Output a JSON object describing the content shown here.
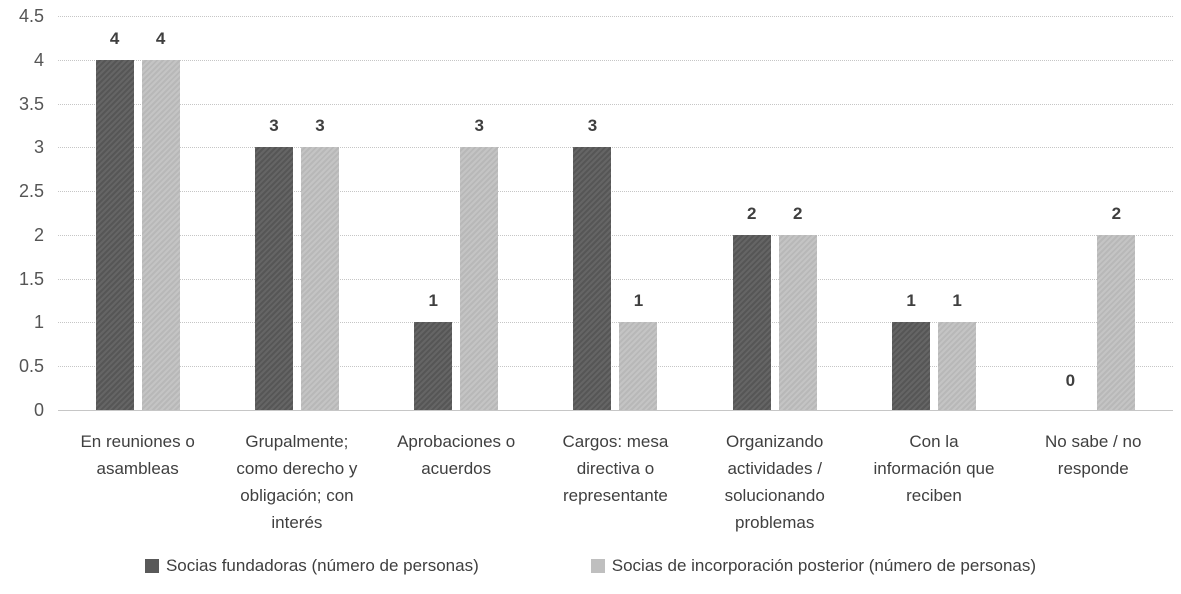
{
  "chart_data": {
    "type": "bar",
    "title": "",
    "xlabel": "",
    "ylabel": "",
    "categories": [
      "En reuniones o asambleas",
      "Grupalmente; como derecho y obligación; con interés",
      "Aprobaciones o acuerdos",
      "Cargos: mesa directiva o representante",
      "Organizando actividades / solucionando problemas",
      "Con la información que reciben",
      "No sabe / no responde"
    ],
    "series": [
      {
        "name": "Socias fundadoras (número de personas)",
        "color": "#595959",
        "values": [
          4,
          3,
          1,
          3,
          2,
          1,
          0
        ]
      },
      {
        "name": "Socias de incorporación posterior (número de personas)",
        "color": "#bfbfbf",
        "values": [
          4,
          3,
          3,
          1,
          2,
          1,
          2
        ]
      }
    ],
    "ylim": [
      0,
      4.5
    ],
    "ytick_step": 0.5,
    "ytick_labels": [
      "0",
      "0.5",
      "1",
      "1.5",
      "2",
      "2.5",
      "3",
      "3.5",
      "4",
      "4.5"
    ],
    "grid": true,
    "gridline_style": "dotted",
    "data_labels": true,
    "legend_position": "bottom",
    "colors": {
      "grid": "#c6c6c6",
      "axis_text": "#555555",
      "label_text": "#3f3f3f",
      "background": "#ffffff"
    }
  }
}
